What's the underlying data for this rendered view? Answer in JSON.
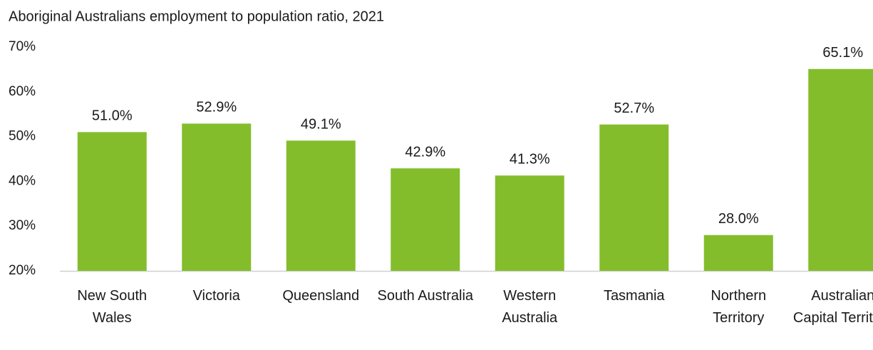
{
  "chart_data": {
    "type": "bar",
    "title": "Aboriginal Australians employment to population ratio, 2021",
    "categories": [
      "New South Wales",
      "Victoria",
      "Queensland",
      "South Australia",
      "Western Australia",
      "Tasmania",
      "Northern Territory",
      "Australian Capital Territory"
    ],
    "values": [
      51.0,
      52.9,
      49.1,
      42.9,
      41.3,
      52.7,
      28.0,
      65.1
    ],
    "value_labels": [
      "51.0%",
      "52.9%",
      "49.1%",
      "42.9%",
      "41.3%",
      "52.7%",
      "28.0%",
      "65.1%"
    ],
    "color": "#84bd2c",
    "ylim": [
      20,
      70
    ],
    "yticks": [
      {
        "value": 20,
        "label": "20%"
      },
      {
        "value": 30,
        "label": "30%"
      },
      {
        "value": 40,
        "label": "40%"
      },
      {
        "value": 50,
        "label": "50%"
      },
      {
        "value": 60,
        "label": "60%"
      },
      {
        "value": 70,
        "label": "70%"
      }
    ],
    "grid": false
  }
}
